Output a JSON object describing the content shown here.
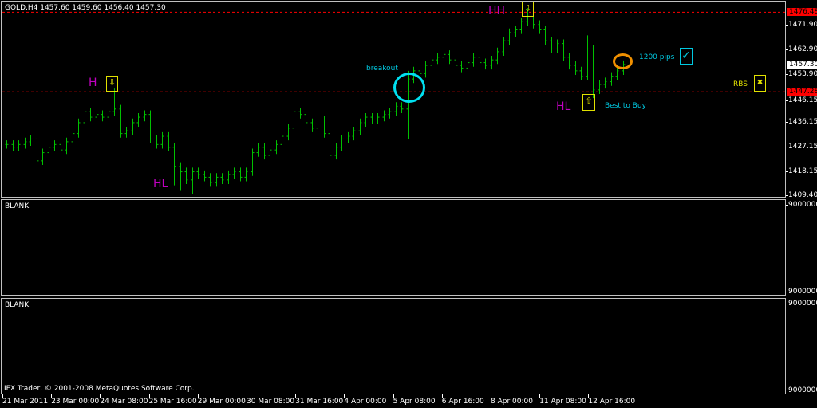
{
  "chart_data": {
    "type": "ohlc",
    "symbol_title": "GOLD,H4  1457.60 1459.60 1456.40 1457.30",
    "ylim": [
      1405,
      1481
    ],
    "close": [
      1428,
      1427,
      1428,
      1429,
      1430,
      1422,
      1425,
      1427,
      1428,
      1426,
      1429,
      1432,
      1436,
      1440,
      1438,
      1439,
      1438,
      1440,
      1441,
      1432,
      1433,
      1436,
      1438,
      1439,
      1430,
      1428,
      1431,
      1427,
      1420,
      1418,
      1415,
      1418,
      1417,
      1416,
      1414,
      1416,
      1415,
      1417,
      1418,
      1416,
      1418,
      1425,
      1427,
      1424,
      1426,
      1428,
      1431,
      1434,
      1440,
      1439,
      1436,
      1434,
      1437,
      1432,
      1424,
      1427,
      1430,
      1431,
      1433,
      1436,
      1438,
      1437,
      1438,
      1439,
      1440,
      1442,
      1441,
      1452,
      1455,
      1454,
      1457,
      1459,
      1460,
      1461,
      1459,
      1457,
      1456,
      1458,
      1460,
      1458,
      1457,
      1459,
      1462,
      1466,
      1469,
      1470,
      1473,
      1475,
      1472,
      1470,
      1466,
      1463,
      1465,
      1460,
      1457,
      1455,
      1453,
      1463,
      1448,
      1450,
      1451,
      1453,
      1455,
      1457.3
    ],
    "spikes": [
      {
        "i": 18,
        "high": 1448.5
      },
      {
        "i": 28,
        "low": 1413
      },
      {
        "i": 29,
        "low": 1411
      },
      {
        "i": 31,
        "low": 1410
      },
      {
        "i": 54,
        "low": 1411
      },
      {
        "i": 67,
        "high": 1455,
        "low": 1430
      },
      {
        "i": 87,
        "high": 1478
      },
      {
        "i": 97,
        "high": 1468
      },
      {
        "i": 98,
        "low": 1445
      }
    ],
    "bar_color": "#00c000",
    "y_ticks": [
      1471.9,
      1462.9,
      1453.9,
      1446.15,
      1436.15,
      1427.15,
      1418.15,
      1409.4
    ],
    "x_ticks": [
      "21 Mar 2011",
      "23 Mar 00:00",
      "24 Mar 08:00",
      "25 Mar 16:00",
      "29 Mar 00:00",
      "30 Mar 08:00",
      "31 Mar 16:00",
      "4 Apr 00:00",
      "5 Apr 08:00",
      "6 Apr 16:00",
      "8 Apr 00:00",
      "11 Apr 08:00",
      "12 Apr 16:00"
    ],
    "hlines": [
      {
        "price": 1476.48,
        "label": "1476.48",
        "color": "#ff0000"
      },
      {
        "price": 1447.28,
        "label": "1447.28",
        "color": "#ff0000"
      }
    ],
    "current_price": {
      "price": 1457.3,
      "label": "1457.30"
    }
  },
  "annotations": {
    "h": "H",
    "hh": "HH",
    "hl1": "HL",
    "hl2": "HL",
    "breakout": "breakout",
    "pips": "1200 pips",
    "best": "Best to Buy",
    "rbs": "RBS",
    "down_arrow": "⇩",
    "up_arrow": "⇧",
    "check": "✓",
    "cross": "✖"
  },
  "panels": [
    {
      "title": "BLANK",
      "top_label": "9000000",
      "bottom_label": "9000000"
    },
    {
      "title": "BLANK",
      "top_label": "9000000",
      "bottom_label": "9000000"
    }
  ],
  "footer": "IFX Trader, © 2001-2008 MetaQuotes Software Corp."
}
